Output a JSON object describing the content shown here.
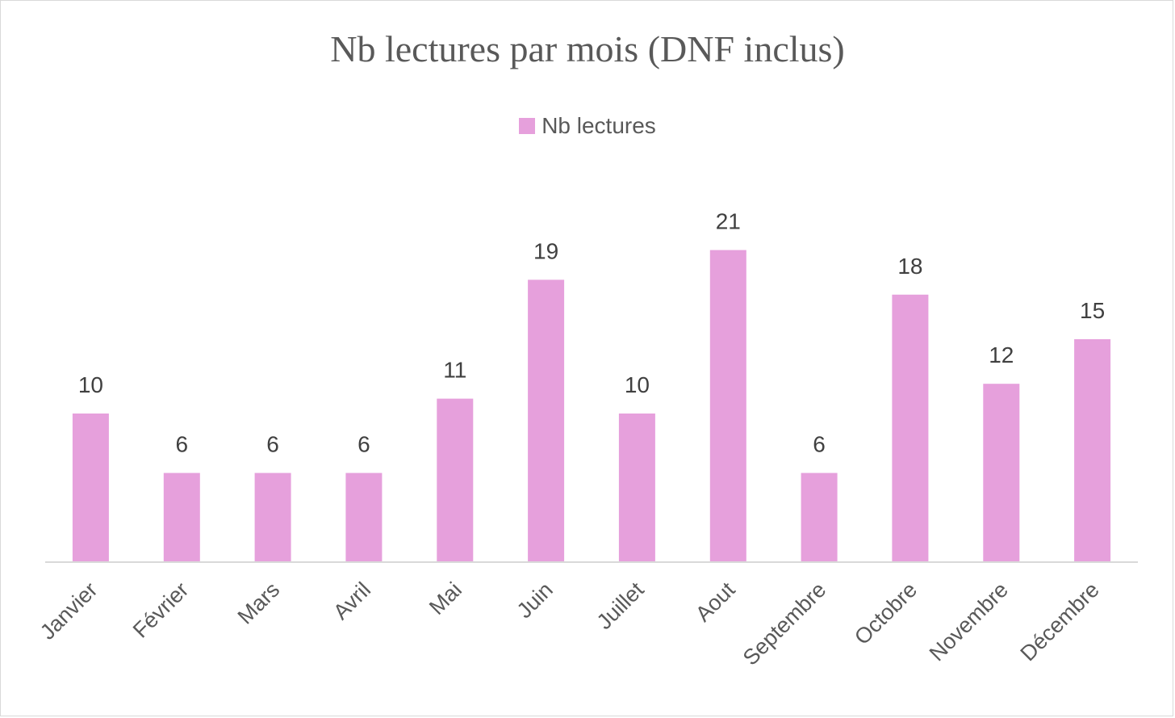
{
  "chart_data": {
    "type": "bar",
    "title": "Nb lectures par mois (DNF inclus)",
    "categories": [
      "Janvier",
      "Février",
      "Mars",
      "Avril",
      "Mai",
      "Juin",
      "Juillet",
      "Aout",
      "Septembre",
      "Octobre",
      "Novembre",
      "Décembre"
    ],
    "series": [
      {
        "name": "Nb lectures",
        "values": [
          10,
          6,
          6,
          6,
          11,
          19,
          10,
          21,
          6,
          18,
          12,
          15
        ],
        "color": "#e6a0dc"
      }
    ],
    "xlabel": "",
    "ylabel": "",
    "ylim": [
      0,
      21
    ],
    "grid": false,
    "legend": "top",
    "data_labels": true,
    "axis_color": "#d9d9d9"
  }
}
